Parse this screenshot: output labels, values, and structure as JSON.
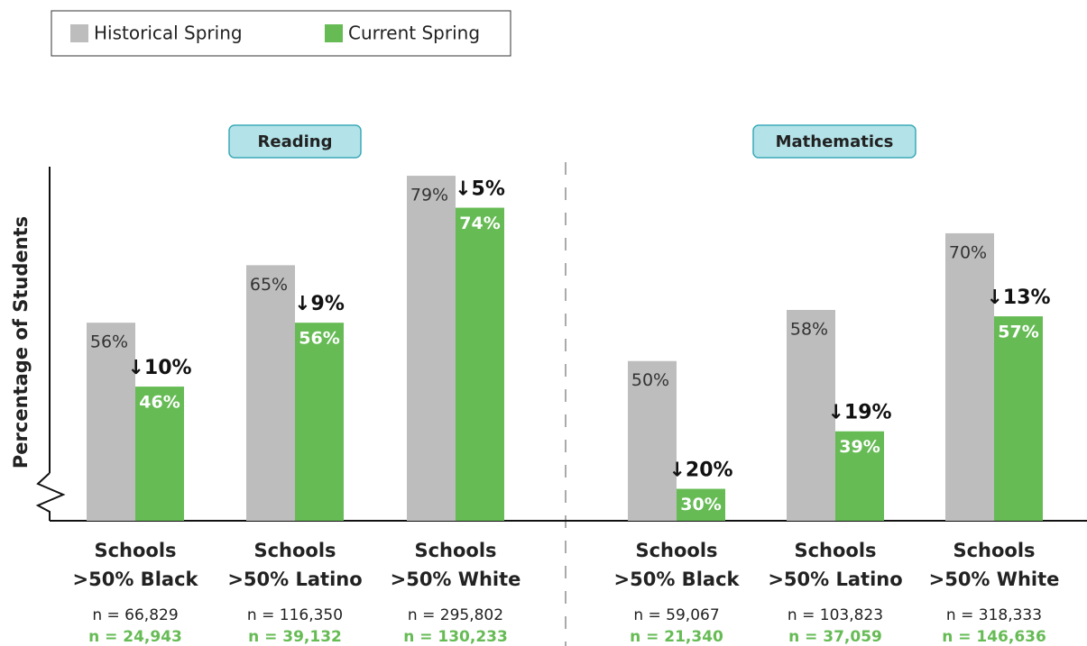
{
  "chart_data": {
    "type": "bar",
    "ylabel": "Percentage of Students",
    "ylim": [
      25,
      80
    ],
    "series": [
      {
        "name": "Historical Spring",
        "color": "#bdbdbe"
      },
      {
        "name": "Current Spring",
        "color": "#66bb55"
      }
    ],
    "panels": [
      {
        "title": "Reading",
        "categories": [
          [
            "Schools",
            ">50% Black"
          ],
          [
            "Schools",
            ">50% Latino"
          ],
          [
            "Schools",
            ">50% White"
          ]
        ],
        "series": [
          {
            "values": [
              56,
              65,
              79
            ],
            "value_labels": [
              "56%",
              "65%",
              "79%"
            ],
            "n_labels": [
              "n = 66,829",
              "n = 116,350",
              "n = 295,802"
            ]
          },
          {
            "values": [
              46,
              56,
              74
            ],
            "value_labels": [
              "46%",
              "56%",
              "74%"
            ],
            "n_labels": [
              "n = 24,943",
              "n = 39,132",
              "n = 130,233"
            ]
          }
        ],
        "change_labels": [
          "↓10%",
          "↓9%",
          "↓5%"
        ]
      },
      {
        "title": "Mathematics",
        "categories": [
          [
            "Schools",
            ">50% Black"
          ],
          [
            "Schools",
            ">50% Latino"
          ],
          [
            "Schools",
            ">50% White"
          ]
        ],
        "series": [
          {
            "values": [
              50,
              58,
              70
            ],
            "value_labels": [
              "50%",
              "58%",
              "70%"
            ],
            "n_labels": [
              "n = 59,067",
              "n = 103,823",
              "n = 318,333"
            ]
          },
          {
            "values": [
              30,
              39,
              57
            ],
            "value_labels": [
              "30%",
              "39%",
              "57%"
            ],
            "n_labels": [
              "n = 21,340",
              "n = 37,059",
              "n = 146,636"
            ]
          }
        ],
        "change_labels": [
          "↓20%",
          "↓19%",
          "↓13%"
        ]
      }
    ]
  }
}
